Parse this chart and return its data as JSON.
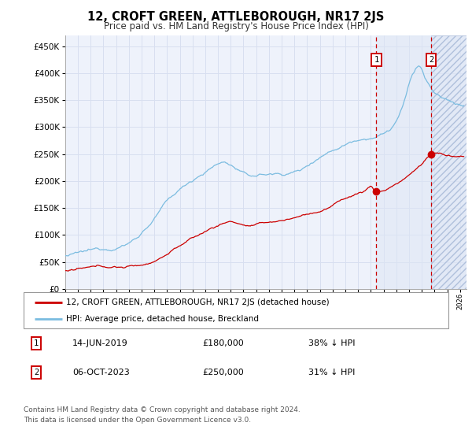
{
  "title": "12, CROFT GREEN, ATTLEBOROUGH, NR17 2JS",
  "subtitle": "Price paid vs. HM Land Registry's House Price Index (HPI)",
  "ytick_values": [
    0,
    50000,
    100000,
    150000,
    200000,
    250000,
    300000,
    350000,
    400000,
    450000
  ],
  "ylim": [
    0,
    470000
  ],
  "xlim_start": 1995.0,
  "xlim_end": 2026.5,
  "xtick_years": [
    1995,
    1996,
    1997,
    1998,
    1999,
    2000,
    2001,
    2002,
    2003,
    2004,
    2005,
    2006,
    2007,
    2008,
    2009,
    2010,
    2011,
    2012,
    2013,
    2014,
    2015,
    2016,
    2017,
    2018,
    2019,
    2020,
    2021,
    2022,
    2023,
    2024,
    2025,
    2026
  ],
  "hpi_color": "#7bbce0",
  "price_color": "#cc0000",
  "transaction1_x": 2019.44,
  "transaction1_y": 180000,
  "transaction2_x": 2023.75,
  "transaction2_y": 250000,
  "marker1_label": "1",
  "marker2_label": "2",
  "legend_line1": "12, CROFT GREEN, ATTLEBOROUGH, NR17 2JS (detached house)",
  "legend_line2": "HPI: Average price, detached house, Breckland",
  "table_row1_num": "1",
  "table_row1_date": "14-JUN-2019",
  "table_row1_price": "£180,000",
  "table_row1_hpi": "38% ↓ HPI",
  "table_row2_num": "2",
  "table_row2_date": "06-OCT-2023",
  "table_row2_price": "£250,000",
  "table_row2_hpi": "31% ↓ HPI",
  "footer": "Contains HM Land Registry data © Crown copyright and database right 2024.\nThis data is licensed under the Open Government Licence v3.0.",
  "background_color": "#ffffff",
  "plot_bg_color": "#eef2fb",
  "grid_color": "#d8dff0",
  "hatch_color": "#c8d4ee",
  "marker_box_color": "#cc0000"
}
